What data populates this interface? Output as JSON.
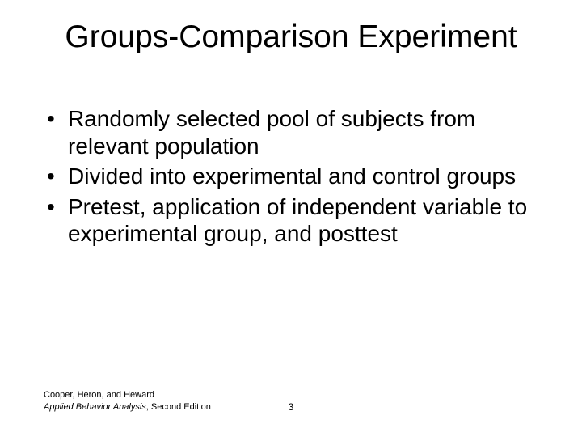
{
  "title": "Groups-Comparison Experiment",
  "bullets": [
    "Randomly selected pool of subjects from relevant population",
    "Divided into experimental and control groups",
    "Pretest, application of independent variable to experimental group, and posttest"
  ],
  "footer": {
    "authors": "Cooper, Heron, and Heward",
    "book_title": "Applied Behavior Analysis",
    "edition": ", Second Edition",
    "page_number": "3"
  },
  "colors": {
    "background": "#ffffff",
    "text": "#000000"
  },
  "typography": {
    "title_fontsize": 39,
    "bullet_fontsize": 28,
    "footer_fontsize": 11,
    "font_family": "Arial"
  }
}
